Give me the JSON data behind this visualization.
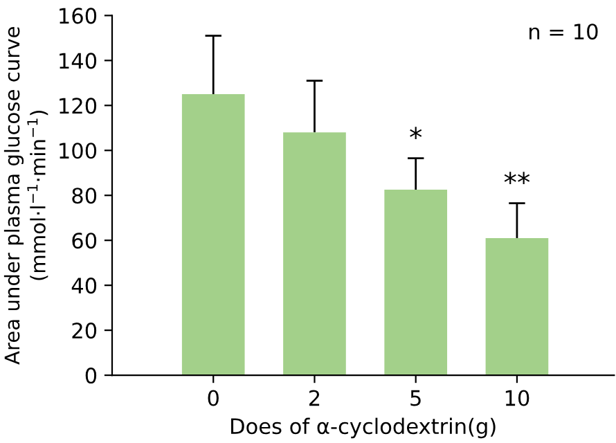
{
  "chart_data": {
    "type": "bar",
    "categories": [
      "0",
      "2",
      "5",
      "10"
    ],
    "values": [
      125,
      108,
      82.5,
      61
    ],
    "errors": [
      [
        125,
        151
      ],
      [
        108,
        131
      ],
      [
        82.5,
        96.5
      ],
      [
        61,
        76.5
      ]
    ],
    "color": "#a3d08a",
    "xlabel": "Does of α-cyclodextrin(g)",
    "ylabel": "Area under plasma glucose curve\n(mmol·l$^{−1}$·min$^{−1}$)",
    "ylim": [
      0,
      160
    ],
    "yticks": [
      0,
      20,
      40,
      60,
      80,
      100,
      120,
      140,
      160
    ],
    "grid": false,
    "annotations": [
      {
        "text": "*",
        "x": "5",
        "y": 96.5
      },
      {
        "text": "**",
        "x": "10",
        "y": 76.5
      },
      "n = 10"
    ]
  }
}
